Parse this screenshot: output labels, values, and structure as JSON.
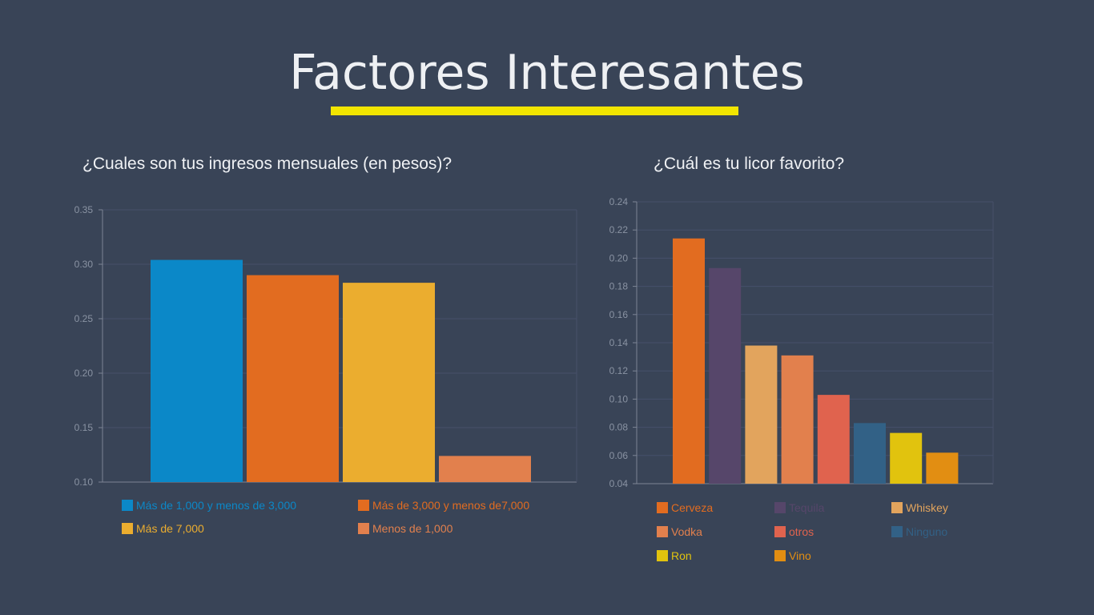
{
  "slide": {
    "title": "Factores Interesantes",
    "accent_color": "#f2e500",
    "background": "#394457"
  },
  "chart_data": [
    {
      "type": "bar",
      "title": "¿Cuales son tus ingresos mensuales (en pesos)?",
      "xlabel": "",
      "ylabel": "",
      "ylim": [
        0.1,
        0.35
      ],
      "yticks": [
        "0.10",
        "0.15",
        "0.20",
        "0.25",
        "0.30",
        "0.35"
      ],
      "grid": true,
      "legend_position": "bottom",
      "series": [
        {
          "name": "Más de 1,000 y menos de 3,000",
          "value": 0.304,
          "color": "#0b88c8"
        },
        {
          "name": "Más de 3,000 y menos de7,000",
          "value": 0.29,
          "color": "#e26c20"
        },
        {
          "name": "Más de 7,000",
          "value": 0.283,
          "color": "#ebad2f"
        },
        {
          "name": "Menos de 1,000",
          "value": 0.124,
          "color": "#e2804d"
        }
      ]
    },
    {
      "type": "bar",
      "title": "¿Cuál es tu licor favorito?",
      "xlabel": "",
      "ylabel": "",
      "ylim": [
        0.04,
        0.24
      ],
      "yticks": [
        "0.04",
        "0.06",
        "0.08",
        "0.10",
        "0.12",
        "0.14",
        "0.16",
        "0.18",
        "0.20",
        "0.22",
        "0.24"
      ],
      "grid": true,
      "legend_position": "bottom",
      "series": [
        {
          "name": "Cerveza",
          "value": 0.214,
          "color": "#e26c20"
        },
        {
          "name": "Tequila",
          "value": 0.193,
          "color": "#56466a"
        },
        {
          "name": "Whiskey",
          "value": 0.138,
          "color": "#e2a45d"
        },
        {
          "name": "Vodka",
          "value": 0.131,
          "color": "#e2804d"
        },
        {
          "name": "otros",
          "value": 0.103,
          "color": "#e0634e"
        },
        {
          "name": "Ninguno",
          "value": 0.083,
          "color": "#326186"
        },
        {
          "name": "Ron",
          "value": 0.076,
          "color": "#e1c30e"
        },
        {
          "name": "Vino",
          "value": 0.062,
          "color": "#e28e12"
        }
      ]
    }
  ]
}
